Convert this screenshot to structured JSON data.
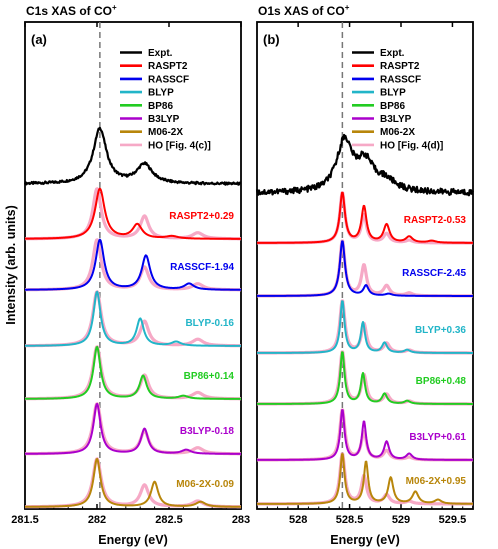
{
  "chart_data": [
    {
      "type": "line",
      "panel_label": "(a)",
      "title": "C1s XAS of CO",
      "title_sup": "+",
      "xlabel": "Energy (eV)",
      "ylabel": "Intensity (arb. units)",
      "xlim": [
        281.5,
        283
      ],
      "xticks": [
        281.5,
        282,
        282.5,
        283
      ],
      "xtick_labels": [
        "281.5",
        "282",
        "282.5",
        "283"
      ],
      "dashed_line_x": 282.02,
      "legend_placement": "top-right",
      "legend": [
        {
          "name": "Expt.",
          "color": "#000000"
        },
        {
          "name": "RASPT2",
          "color": "#ff0000"
        },
        {
          "name": "RASSCF",
          "color": "#0000ee"
        },
        {
          "name": "BLYP",
          "color": "#22b5c8"
        },
        {
          "name": "BP86",
          "color": "#22cc22"
        },
        {
          "name": "B3LYP",
          "color": "#aa00cc"
        },
        {
          "name": "M06-2X",
          "color": "#b8860b"
        },
        {
          "name": "HO [Fig. 4(c)]",
          "color": "#f6a9c6"
        }
      ],
      "series": [
        {
          "name": "Expt.",
          "color": "#000000",
          "offset": 0.0,
          "baseline": 281.6,
          "peaks": [
            [
              282.02,
              55
            ],
            [
              282.33,
              19
            ]
          ],
          "widths": [
            0.055,
            0.065
          ],
          "noise": 1.2
        },
        {
          "name": "RASPT2",
          "color": "#ff0000",
          "offset": 1.0,
          "baseline": 324.0,
          "peaks": [
            [
              282.02,
              50
            ],
            [
              282.28,
              14
            ],
            [
              282.52,
              2.5
            ]
          ],
          "widths": [
            0.04,
            0.04,
            0.05
          ],
          "annotation": "RASPT2+0.29"
        },
        {
          "name": "RASSCF",
          "color": "#0000ee",
          "offset": 2.0,
          "baseline": 374.0,
          "peaks": [
            [
              282.02,
              50
            ],
            [
              282.34,
              34
            ],
            [
              282.64,
              6
            ]
          ],
          "widths": [
            0.035,
            0.035,
            0.04
          ],
          "annotation": "RASSCF-1.94"
        },
        {
          "name": "BLYP",
          "color": "#22b5c8",
          "offset": 3.0,
          "baseline": 430.0,
          "peaks": [
            [
              282.0,
              54
            ],
            [
              282.3,
              27
            ],
            [
              282.55,
              4
            ]
          ],
          "widths": [
            0.03,
            0.03,
            0.04
          ],
          "annotation": "BLYP-0.16"
        },
        {
          "name": "BP86",
          "color": "#22cc22",
          "offset": 4.0,
          "baseline": 483.0,
          "peaks": [
            [
              282.0,
              52
            ],
            [
              282.32,
              23
            ],
            [
              282.6,
              3
            ]
          ],
          "widths": [
            0.03,
            0.03,
            0.04
          ],
          "annotation": "BP86+0.14"
        },
        {
          "name": "B3LYP",
          "color": "#aa00cc",
          "offset": 5.0,
          "baseline": 538.0,
          "peaks": [
            [
              282.0,
              50
            ],
            [
              282.33,
              25
            ],
            [
              282.62,
              4
            ]
          ],
          "widths": [
            0.03,
            0.03,
            0.04
          ],
          "annotation": "B3LYP-0.18"
        },
        {
          "name": "M06-2X",
          "color": "#b8860b",
          "offset": 6.0,
          "baseline": 591.0,
          "peaks": [
            [
              282.0,
              48
            ],
            [
              282.4,
              25
            ],
            [
              282.72,
              5
            ]
          ],
          "widths": [
            0.03,
            0.03,
            0.04
          ],
          "annotation": "M06-2X-0.09"
        }
      ],
      "ho_reference": {
        "name": "HO [Fig. 4(c)]",
        "color": "#f6a9c6",
        "peaks": [
          [
            282.0,
            1.0
          ],
          [
            282.33,
            0.45
          ],
          [
            282.7,
            0.12
          ]
        ],
        "widths": [
          0.035,
          0.035,
          0.045
        ]
      }
    },
    {
      "type": "line",
      "panel_label": "(b)",
      "title": "O1s XAS of CO",
      "title_sup": "+",
      "xlabel": "Energy (eV)",
      "ylabel": "",
      "xlim": [
        527.6,
        529.7
      ],
      "xticks": [
        528,
        528.5,
        529,
        529.5
      ],
      "xtick_labels": [
        "528",
        "528.5",
        "529",
        "529.5"
      ],
      "dashed_line_x": 528.43,
      "legend_placement": "top-right",
      "legend": [
        {
          "name": "Expt.",
          "color": "#000000"
        },
        {
          "name": "RASPT2",
          "color": "#ff0000"
        },
        {
          "name": "RASSCF",
          "color": "#0000ee"
        },
        {
          "name": "BLYP",
          "color": "#22b5c8"
        },
        {
          "name": "BP86",
          "color": "#22cc22"
        },
        {
          "name": "B3LYP",
          "color": "#aa00cc"
        },
        {
          "name": "M06-2X",
          "color": "#b8860b"
        },
        {
          "name": "HO [Fig. 4(d)]",
          "color": "#f6a9c6"
        }
      ],
      "series": [
        {
          "name": "Expt.",
          "color": "#000000",
          "offset": 0.0,
          "peaks": [
            [
              528.45,
              50
            ],
            [
              528.65,
              28
            ],
            [
              528.85,
              10
            ]
          ],
          "widths": [
            0.09,
            0.1,
            0.12
          ],
          "noise": 3.0
        },
        {
          "name": "RASPT2",
          "color": "#ff0000",
          "offset": 1.0,
          "peaks": [
            [
              528.43,
              50
            ],
            [
              528.64,
              36
            ],
            [
              528.86,
              18
            ],
            [
              529.08,
              6
            ],
            [
              529.3,
              2
            ]
          ],
          "widths": [
            0.03,
            0.03,
            0.035,
            0.04,
            0.05
          ],
          "annotation": "RASPT2-0.53"
        },
        {
          "name": "RASSCF",
          "color": "#0000ee",
          "offset": 2.0,
          "peaks": [
            [
              528.43,
              55
            ],
            [
              528.66,
              10
            ],
            [
              528.88,
              2
            ]
          ],
          "widths": [
            0.03,
            0.03,
            0.04
          ],
          "annotation": "RASSCF-2.45"
        },
        {
          "name": "BLYP",
          "color": "#22b5c8",
          "offset": 3.0,
          "peaks": [
            [
              528.43,
              52
            ],
            [
              528.63,
              30
            ],
            [
              528.84,
              10
            ],
            [
              529.06,
              3
            ]
          ],
          "widths": [
            0.025,
            0.025,
            0.03,
            0.035
          ],
          "annotation": "BLYP+0.36"
        },
        {
          "name": "BP86",
          "color": "#22cc22",
          "offset": 4.0,
          "peaks": [
            [
              528.43,
              52
            ],
            [
              528.63,
              30
            ],
            [
              528.84,
              10
            ],
            [
              529.06,
              3
            ]
          ],
          "widths": [
            0.025,
            0.025,
            0.03,
            0.035
          ],
          "annotation": "BP86+0.48"
        },
        {
          "name": "B3LYP",
          "color": "#aa00cc",
          "offset": 5.0,
          "peaks": [
            [
              528.43,
              50
            ],
            [
              528.64,
              38
            ],
            [
              528.86,
              18
            ],
            [
              529.08,
              6
            ]
          ],
          "widths": [
            0.025,
            0.025,
            0.03,
            0.035
          ],
          "annotation": "B3LYP+0.61"
        },
        {
          "name": "M06-2X",
          "color": "#b8860b",
          "offset": 6.0,
          "peaks": [
            [
              528.43,
              50
            ],
            [
              528.66,
              42
            ],
            [
              528.9,
              26
            ],
            [
              529.14,
              12
            ],
            [
              529.36,
              4
            ]
          ],
          "widths": [
            0.025,
            0.025,
            0.03,
            0.035,
            0.04
          ],
          "annotation": "M06-2X+0.95"
        }
      ],
      "ho_reference": {
        "name": "HO [Fig. 4(d)]",
        "color": "#f6a9c6",
        "peaks": [
          [
            528.43,
            1.0
          ],
          [
            528.64,
            0.55
          ],
          [
            528.86,
            0.18
          ],
          [
            529.08,
            0.05
          ]
        ],
        "widths": [
          0.03,
          0.03,
          0.035,
          0.04
        ]
      }
    }
  ]
}
